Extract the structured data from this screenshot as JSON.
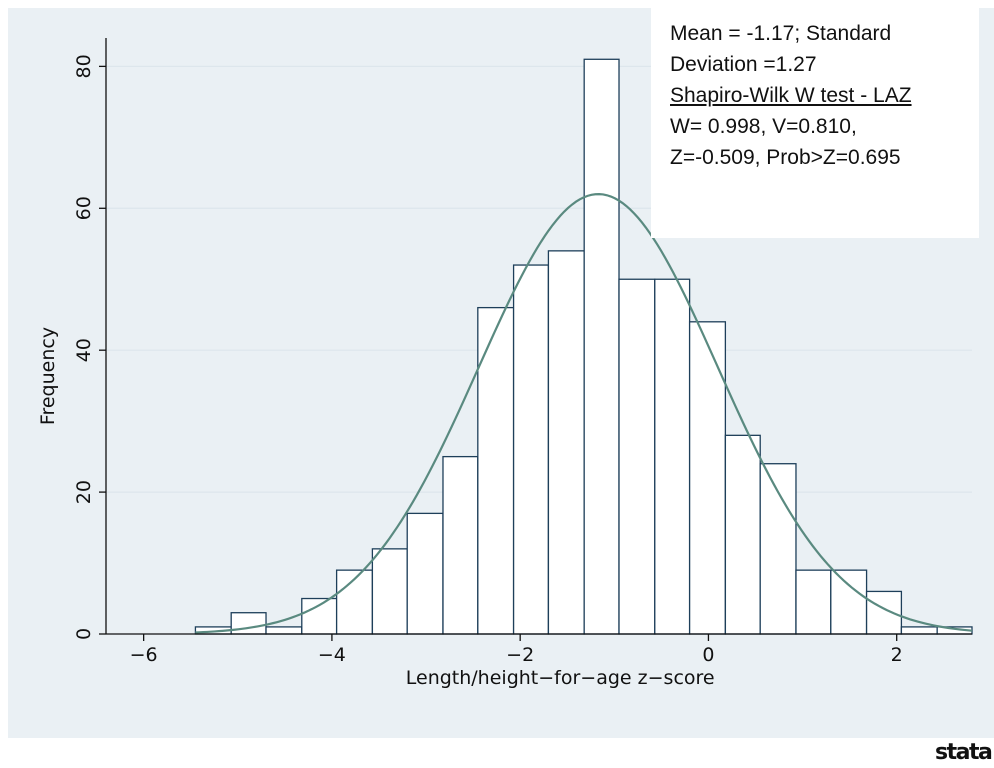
{
  "chart_data": {
    "type": "bar",
    "xlabel": "Length/height−for−age z−score",
    "ylabel": "Frequency",
    "xlim": [
      -6.4,
      2.8
    ],
    "ylim": [
      0,
      84
    ],
    "xticks": [
      -6,
      -4,
      -2,
      0,
      2
    ],
    "yticks": [
      0,
      20,
      40,
      60,
      80
    ],
    "xtick_labels": [
      "−6",
      "−4",
      "−2",
      "0",
      "2"
    ],
    "ytick_labels": [
      "0",
      "20",
      "40",
      "60",
      "80"
    ],
    "grid": "horizontal",
    "bins": [
      {
        "x0": -5.45,
        "x1": -5.07,
        "value": 1
      },
      {
        "x0": -5.07,
        "x1": -4.7,
        "value": 3
      },
      {
        "x0": -4.7,
        "x1": -4.32,
        "value": 1
      },
      {
        "x0": -4.32,
        "x1": -3.95,
        "value": 5
      },
      {
        "x0": -3.95,
        "x1": -3.57,
        "value": 9
      },
      {
        "x0": -3.57,
        "x1": -3.2,
        "value": 12
      },
      {
        "x0": -3.2,
        "x1": -2.82,
        "value": 17
      },
      {
        "x0": -2.82,
        "x1": -2.45,
        "value": 25
      },
      {
        "x0": -2.45,
        "x1": -2.07,
        "value": 46
      },
      {
        "x0": -2.07,
        "x1": -1.7,
        "value": 52
      },
      {
        "x0": -1.7,
        "x1": -1.32,
        "value": 54
      },
      {
        "x0": -1.32,
        "x1": -0.95,
        "value": 81
      },
      {
        "x0": -0.95,
        "x1": -0.57,
        "value": 50
      },
      {
        "x0": -0.57,
        "x1": -0.2,
        "value": 50
      },
      {
        "x0": -0.2,
        "x1": 0.18,
        "value": 44
      },
      {
        "x0": 0.18,
        "x1": 0.55,
        "value": 28
      },
      {
        "x0": 0.55,
        "x1": 0.93,
        "value": 24
      },
      {
        "x0": 0.93,
        "x1": 1.3,
        "value": 9
      },
      {
        "x0": 1.3,
        "x1": 1.68,
        "value": 9
      },
      {
        "x0": 1.68,
        "x1": 2.05,
        "value": 6
      },
      {
        "x0": 2.05,
        "x1": 2.43,
        "value": 1
      },
      {
        "x0": 2.43,
        "x1": 2.8,
        "value": 1
      }
    ],
    "normal_curve": {
      "mean": -1.17,
      "sd": 1.27,
      "peak": 62
    }
  },
  "stats_box": {
    "line1": "Mean = -1.17; Standard",
    "line2": "Deviation =1.27",
    "line3": "Shapiro-Wilk W test - LAZ",
    "line4": "W= 0.998, V=0.810,",
    "line5": "Z=-0.509, Prob>Z=0.695"
  },
  "logo_text": "stata",
  "colors": {
    "panel": "#eaf0f4",
    "bar_stroke": "#1e3f5a",
    "bar_fill": "#ffffff",
    "curve": "#5a8a80",
    "grid": "#dde6ec"
  }
}
